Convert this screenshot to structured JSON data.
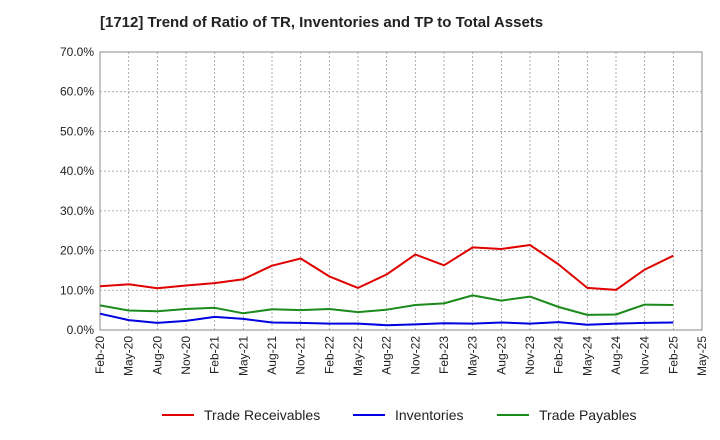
{
  "chart_data": {
    "type": "line",
    "title": "[1712]  Trend of Ratio of TR, Inventories and TP to Total Assets",
    "xlabel": "",
    "ylabel": "",
    "ylim": [
      0,
      70
    ],
    "ytick_labels": [
      "0.0%",
      "10.0%",
      "20.0%",
      "30.0%",
      "40.0%",
      "50.0%",
      "60.0%",
      "70.0%"
    ],
    "xtick_labels": [
      "Feb-20",
      "May-20",
      "Aug-20",
      "Nov-20",
      "Feb-21",
      "May-21",
      "Aug-21",
      "Nov-21",
      "Feb-22",
      "May-22",
      "Aug-22",
      "Nov-22",
      "Feb-23",
      "May-23",
      "Aug-23",
      "Nov-23",
      "Feb-24",
      "May-24",
      "Aug-24",
      "Nov-24",
      "Feb-25",
      "May-25"
    ],
    "grid": true,
    "legend_position": "bottom",
    "series": [
      {
        "name": "Trade Receivables",
        "color": "#e00000",
        "values": [
          11.0,
          11.5,
          10.5,
          11.2,
          11.8,
          12.8,
          16.2,
          18.0,
          13.5,
          10.6,
          14.0,
          19.0,
          16.3,
          20.8,
          20.4,
          21.4,
          16.5,
          10.6,
          10.1,
          15.2,
          18.7
        ]
      },
      {
        "name": "Inventories",
        "color": "#0000e0",
        "values": [
          4.1,
          2.5,
          1.8,
          2.3,
          3.3,
          2.8,
          1.9,
          1.8,
          1.6,
          1.6,
          1.2,
          1.4,
          1.7,
          1.6,
          1.9,
          1.6,
          2.0,
          1.3,
          1.6,
          1.8,
          1.9
        ]
      },
      {
        "name": "Trade Payables",
        "color": "#1a8a1a",
        "values": [
          6.2,
          4.9,
          4.7,
          5.3,
          5.6,
          4.2,
          5.2,
          5.0,
          5.3,
          4.5,
          5.1,
          6.3,
          6.7,
          8.7,
          7.4,
          8.4,
          5.8,
          3.8,
          3.9,
          6.4,
          6.3
        ]
      }
    ]
  }
}
